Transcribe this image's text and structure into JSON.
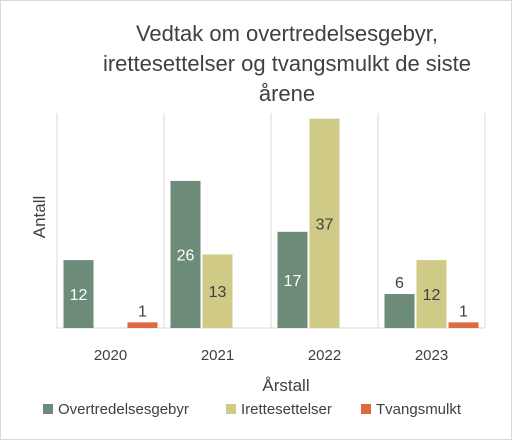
{
  "chart_data": {
    "type": "bar",
    "title": "Vedtak om overtredelsesgebyr, irettesettelser og tvangsmulkt de siste årene",
    "title_lines": [
      "Vedtak om overtredelsesgebyr,",
      "irettesettelser og tvangsmulkt de siste",
      "årene"
    ],
    "xlabel": "Årstall",
    "ylabel": "Antall",
    "categories": [
      "2020",
      "2021",
      "2022",
      "2023"
    ],
    "series": [
      {
        "name": "Overtredelsesgebyr",
        "color": "#6c8b78",
        "values": [
          12,
          26,
          17,
          6
        ]
      },
      {
        "name": "Irettesettelser",
        "color": "#cfca86",
        "values": [
          null,
          13,
          37,
          12
        ]
      },
      {
        "name": "Tvangsmulkt",
        "color": "#e06a3f",
        "values": [
          1,
          null,
          null,
          1
        ]
      }
    ],
    "ylim": [
      0,
      38
    ],
    "grid": true,
    "legend_position": "bottom",
    "data_labels": true
  }
}
